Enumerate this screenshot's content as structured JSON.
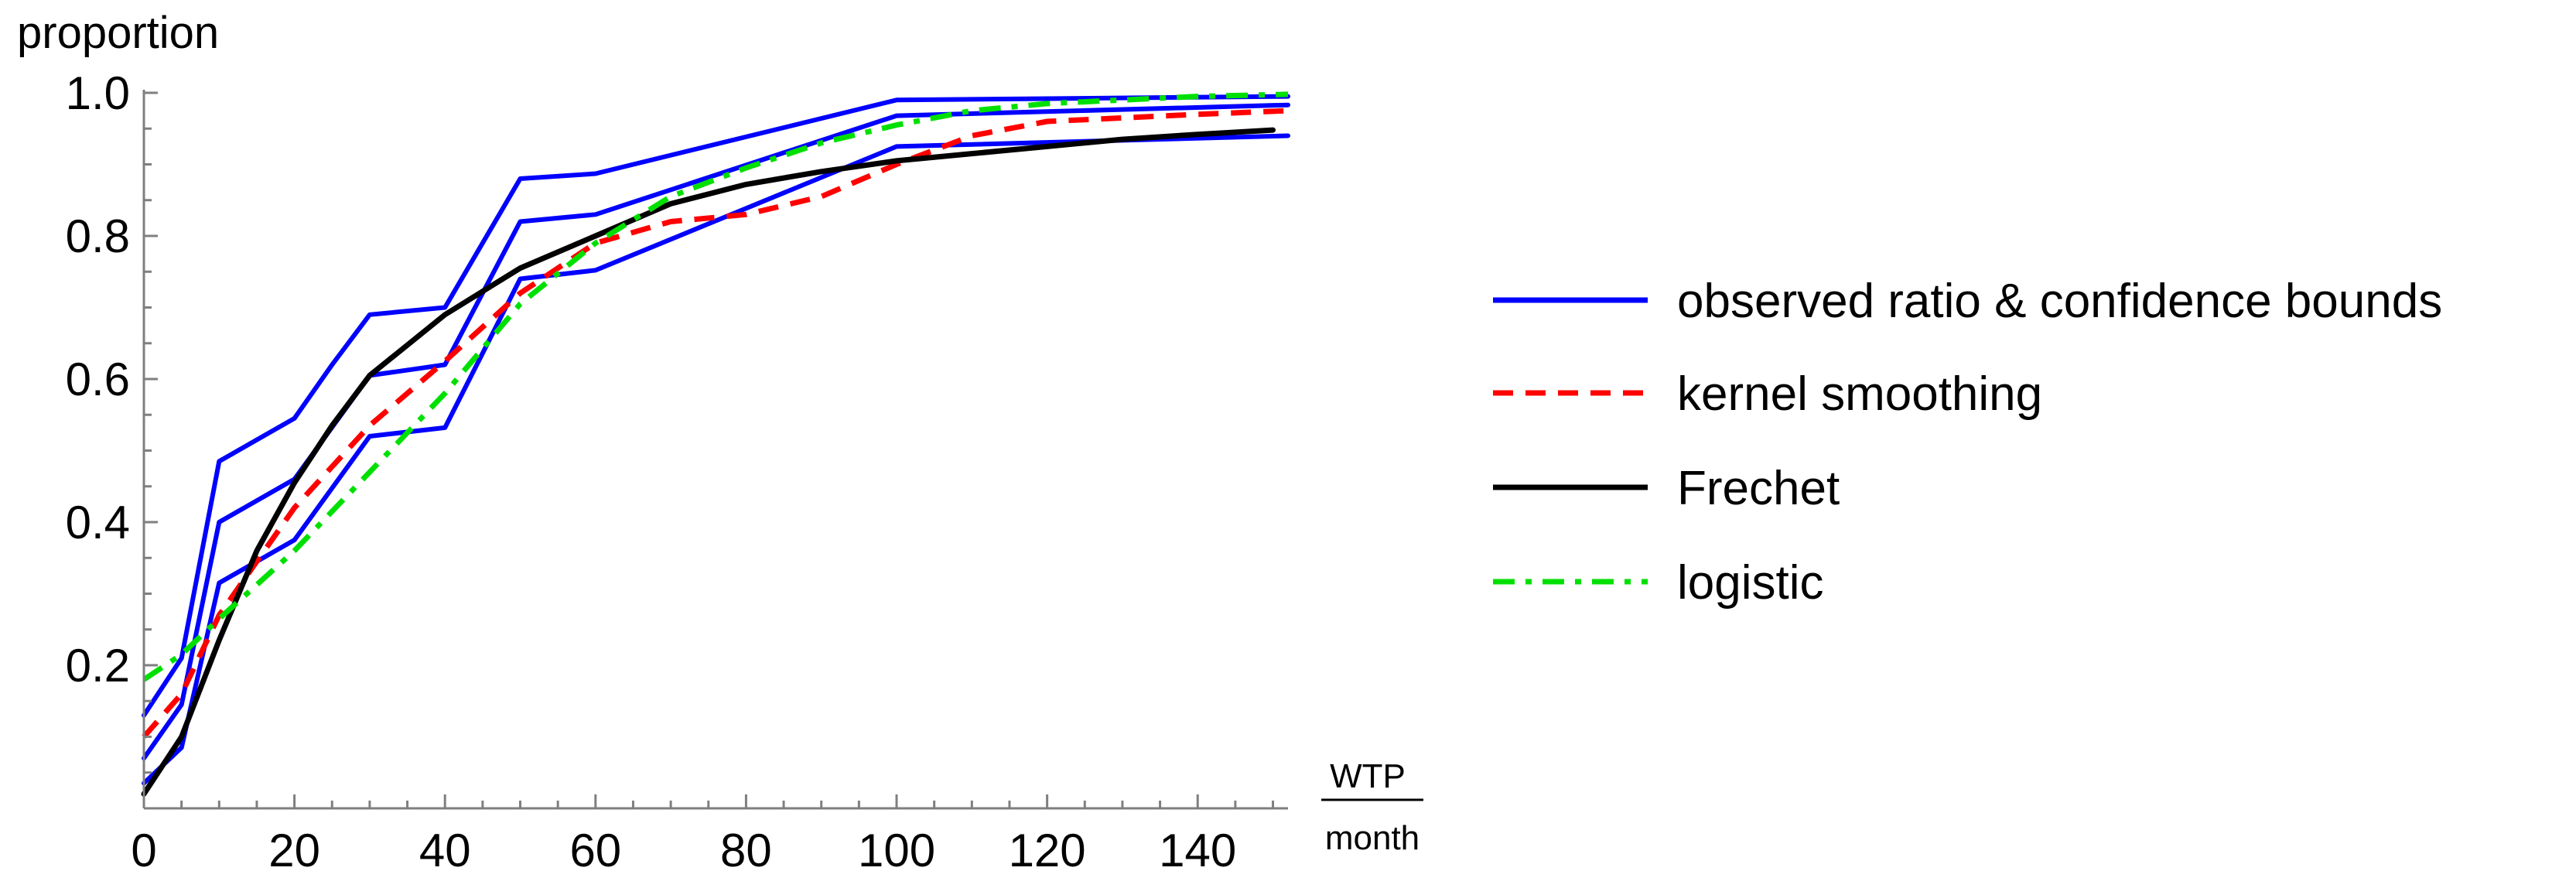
{
  "chart_data": {
    "type": "line",
    "title": "",
    "ylabel": "proportion",
    "xlabel_numerator": "WTP",
    "xlabel_denominator": "month",
    "xlim": [
      0,
      152
    ],
    "ylim": [
      0,
      1.0
    ],
    "x_ticks": [
      0,
      20,
      40,
      60,
      80,
      100,
      120,
      140
    ],
    "x_tick_labels": [
      "0",
      "20",
      "40",
      "60",
      "80",
      "100",
      "120",
      "140"
    ],
    "y_ticks": [
      0.2,
      0.4,
      0.6,
      0.8,
      1.0
    ],
    "y_tick_labels": [
      "0.2",
      "0.4",
      "0.6",
      "0.8",
      "1.0"
    ],
    "legend_position": "right",
    "colors": {
      "observed": "#0000ff",
      "kernel": "#ff0000",
      "frechet": "#000000",
      "logistic": "#00e000",
      "axis": "#7f7f7f"
    },
    "legend": [
      {
        "key": "observed",
        "label": "observed ratio & confidence bounds",
        "style": "solid"
      },
      {
        "key": "kernel",
        "label": "kernel smoothing",
        "style": "dashed"
      },
      {
        "key": "frechet",
        "label": "Frechet",
        "style": "solid"
      },
      {
        "key": "logistic",
        "label": "logistic",
        "style": "dashdot"
      }
    ],
    "series": [
      {
        "name": "observed upper bound",
        "key": "observed",
        "style": "solid",
        "width": 6,
        "points": [
          [
            0,
            0.13
          ],
          [
            5,
            0.21
          ],
          [
            10,
            0.485
          ],
          [
            20,
            0.545
          ],
          [
            25,
            0.62
          ],
          [
            30,
            0.69
          ],
          [
            40,
            0.7
          ],
          [
            50,
            0.88
          ],
          [
            60,
            0.887
          ],
          [
            100,
            0.99
          ],
          [
            152,
            0.995
          ]
        ]
      },
      {
        "name": "observed ratio",
        "key": "observed",
        "style": "solid",
        "width": 6,
        "points": [
          [
            0,
            0.07
          ],
          [
            5,
            0.145
          ],
          [
            10,
            0.4
          ],
          [
            20,
            0.46
          ],
          [
            30,
            0.605
          ],
          [
            40,
            0.62
          ],
          [
            50,
            0.82
          ],
          [
            60,
            0.83
          ],
          [
            100,
            0.968
          ],
          [
            152,
            0.983
          ]
        ]
      },
      {
        "name": "observed lower bound",
        "key": "observed",
        "style": "solid",
        "width": 6,
        "points": [
          [
            0,
            0.035
          ],
          [
            5,
            0.085
          ],
          [
            10,
            0.315
          ],
          [
            20,
            0.375
          ],
          [
            30,
            0.52
          ],
          [
            40,
            0.532
          ],
          [
            50,
            0.74
          ],
          [
            60,
            0.752
          ],
          [
            100,
            0.925
          ],
          [
            152,
            0.94
          ]
        ]
      },
      {
        "name": "kernel smoothing",
        "key": "kernel",
        "style": "dashed",
        "width": 7,
        "points": [
          [
            0,
            0.1
          ],
          [
            5,
            0.16
          ],
          [
            10,
            0.27
          ],
          [
            20,
            0.42
          ],
          [
            30,
            0.535
          ],
          [
            40,
            0.625
          ],
          [
            50,
            0.72
          ],
          [
            60,
            0.79
          ],
          [
            70,
            0.82
          ],
          [
            80,
            0.83
          ],
          [
            90,
            0.855
          ],
          [
            100,
            0.9
          ],
          [
            110,
            0.94
          ],
          [
            120,
            0.96
          ],
          [
            140,
            0.97
          ],
          [
            152,
            0.975
          ]
        ]
      },
      {
        "name": "Frechet",
        "key": "frechet",
        "style": "solid",
        "width": 7,
        "points": [
          [
            0,
            0.02
          ],
          [
            5,
            0.1
          ],
          [
            10,
            0.235
          ],
          [
            15,
            0.36
          ],
          [
            20,
            0.455
          ],
          [
            25,
            0.535
          ],
          [
            30,
            0.605
          ],
          [
            40,
            0.69
          ],
          [
            50,
            0.755
          ],
          [
            60,
            0.8
          ],
          [
            70,
            0.845
          ],
          [
            80,
            0.872
          ],
          [
            90,
            0.89
          ],
          [
            100,
            0.905
          ],
          [
            110,
            0.915
          ],
          [
            120,
            0.925
          ],
          [
            130,
            0.935
          ],
          [
            140,
            0.942
          ],
          [
            150,
            0.948
          ]
        ]
      },
      {
        "name": "logistic",
        "key": "logistic",
        "style": "dashdot",
        "width": 7,
        "points": [
          [
            0,
            0.18
          ],
          [
            5,
            0.215
          ],
          [
            10,
            0.265
          ],
          [
            20,
            0.36
          ],
          [
            30,
            0.47
          ],
          [
            40,
            0.58
          ],
          [
            50,
            0.705
          ],
          [
            60,
            0.79
          ],
          [
            70,
            0.855
          ],
          [
            80,
            0.895
          ],
          [
            90,
            0.93
          ],
          [
            100,
            0.955
          ],
          [
            110,
            0.975
          ],
          [
            120,
            0.985
          ],
          [
            140,
            0.995
          ],
          [
            152,
            0.998
          ]
        ]
      }
    ]
  }
}
